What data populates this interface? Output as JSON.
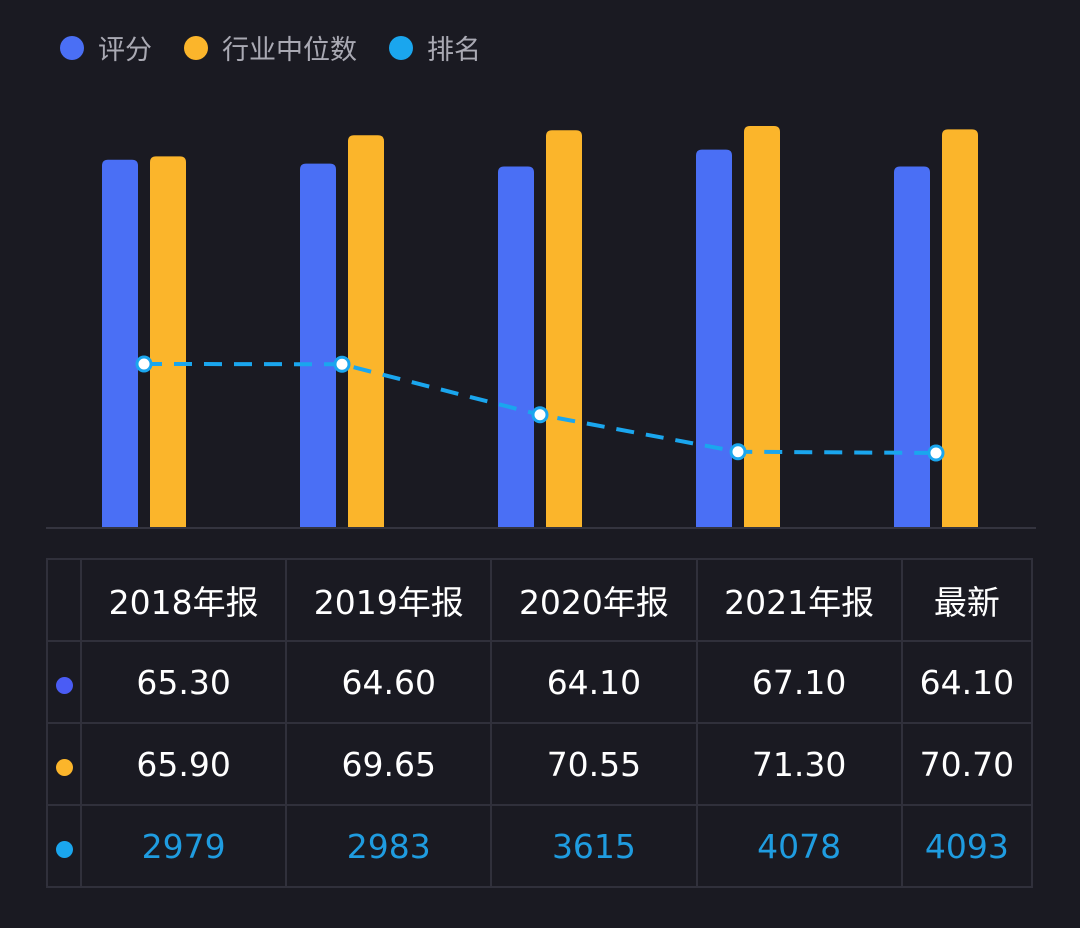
{
  "colors": {
    "score": "#4a6ff5",
    "median": "#fbb52b",
    "rank": "#1aa6ee",
    "background": "#1a1a22"
  },
  "chart_data": {
    "type": "bar+line",
    "categories": [
      "2018年报",
      "2019年报",
      "2020年报",
      "2021年报",
      "最新"
    ],
    "series": [
      {
        "name": "评分",
        "type": "bar",
        "values": [
          65.3,
          64.6,
          64.1,
          67.1,
          64.1
        ]
      },
      {
        "name": "行业中位数",
        "type": "bar",
        "values": [
          65.9,
          69.65,
          70.55,
          71.3,
          70.7
        ]
      },
      {
        "name": "排名",
        "type": "line",
        "style": "dashed",
        "axis": "secondary-inverted",
        "values": [
          2979,
          2983,
          3615,
          4078,
          4093
        ]
      }
    ],
    "ylim": [
      0,
      71.3
    ],
    "rank_ylim": [
      0,
      5020
    ],
    "legend": "top-left",
    "grid": false
  },
  "table": {
    "headers": [
      "2018年报",
      "2019年报",
      "2020年报",
      "2021年报",
      "最新"
    ],
    "rows": [
      {
        "key": "score",
        "values": [
          "65.30",
          "64.60",
          "64.10",
          "67.10",
          "64.10"
        ]
      },
      {
        "key": "median",
        "values": [
          "65.90",
          "69.65",
          "70.55",
          "71.30",
          "70.70"
        ]
      },
      {
        "key": "rank",
        "values": [
          "2979",
          "2983",
          "3615",
          "4078",
          "4093"
        ]
      }
    ]
  }
}
